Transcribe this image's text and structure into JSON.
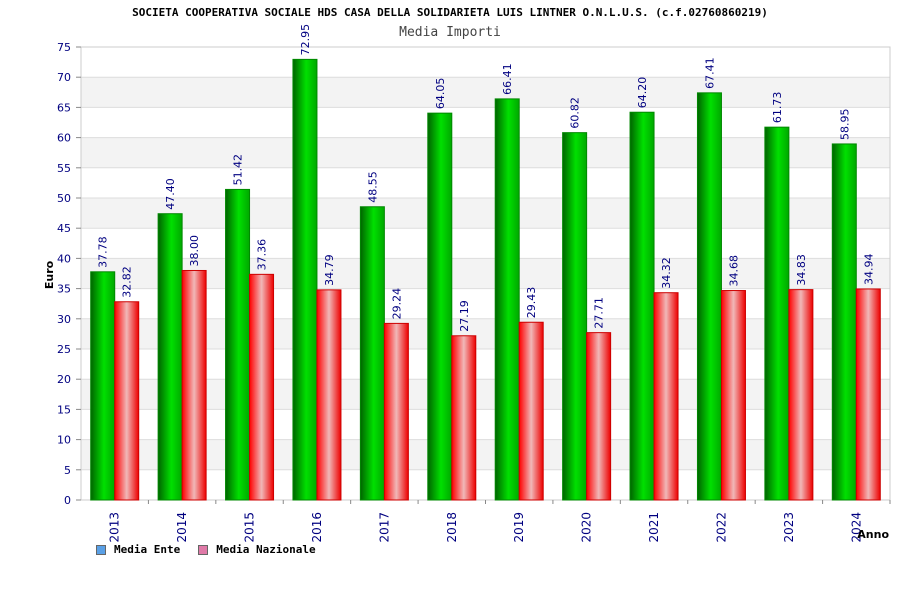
{
  "title": "SOCIETA COOPERATIVA SOCIALE HDS CASA DELLA SOLIDARIETA LUIS LINTNER O.N.L.U.S. (c.f.02760860219)",
  "subtitle": "Media Importi",
  "legend": {
    "ente_label": "Media Ente",
    "nazionale_label": "Media Nazionale",
    "ente_color": "#5aa0e6",
    "nazionale_color": "#e07aa8"
  },
  "chart_data": {
    "type": "bar",
    "categories": [
      "2013",
      "2014",
      "2015",
      "2016",
      "2017",
      "2018",
      "2019",
      "2020",
      "2021",
      "2022",
      "2023",
      "2024"
    ],
    "series": [
      {
        "name": "Media Ente",
        "color": "#00c000",
        "values": [
          37.78,
          47.4,
          51.42,
          72.95,
          48.55,
          64.05,
          66.41,
          60.82,
          64.2,
          67.41,
          61.73,
          58.95
        ],
        "labels": [
          "37.78",
          "47.40",
          "51.42",
          "72.95",
          "48.55",
          "64.05",
          "66.41",
          "60.82",
          "64.20",
          "67.41",
          "61.73",
          "58.95"
        ]
      },
      {
        "name": "Media Nazionale",
        "color": "#ee0000",
        "values": [
          32.82,
          38.0,
          37.36,
          34.79,
          29.24,
          27.19,
          29.43,
          27.71,
          34.32,
          34.68,
          34.83,
          34.94
        ],
        "labels": [
          "32.82",
          "38.00",
          "37.36",
          "34.79",
          "29.24",
          "27.19",
          "29.43",
          "27.71",
          "34.32",
          "34.68",
          "34.83",
          "34.94"
        ]
      }
    ],
    "xlabel": "Anno",
    "ylabel": "Euro",
    "ylim": [
      0,
      75
    ],
    "yticks": [
      "0",
      "5",
      "10",
      "15",
      "20",
      "25",
      "30",
      "35",
      "40",
      "45",
      "50",
      "55",
      "60",
      "65",
      "70",
      "75"
    ],
    "grid": true,
    "legend_position": "bottom-left"
  }
}
